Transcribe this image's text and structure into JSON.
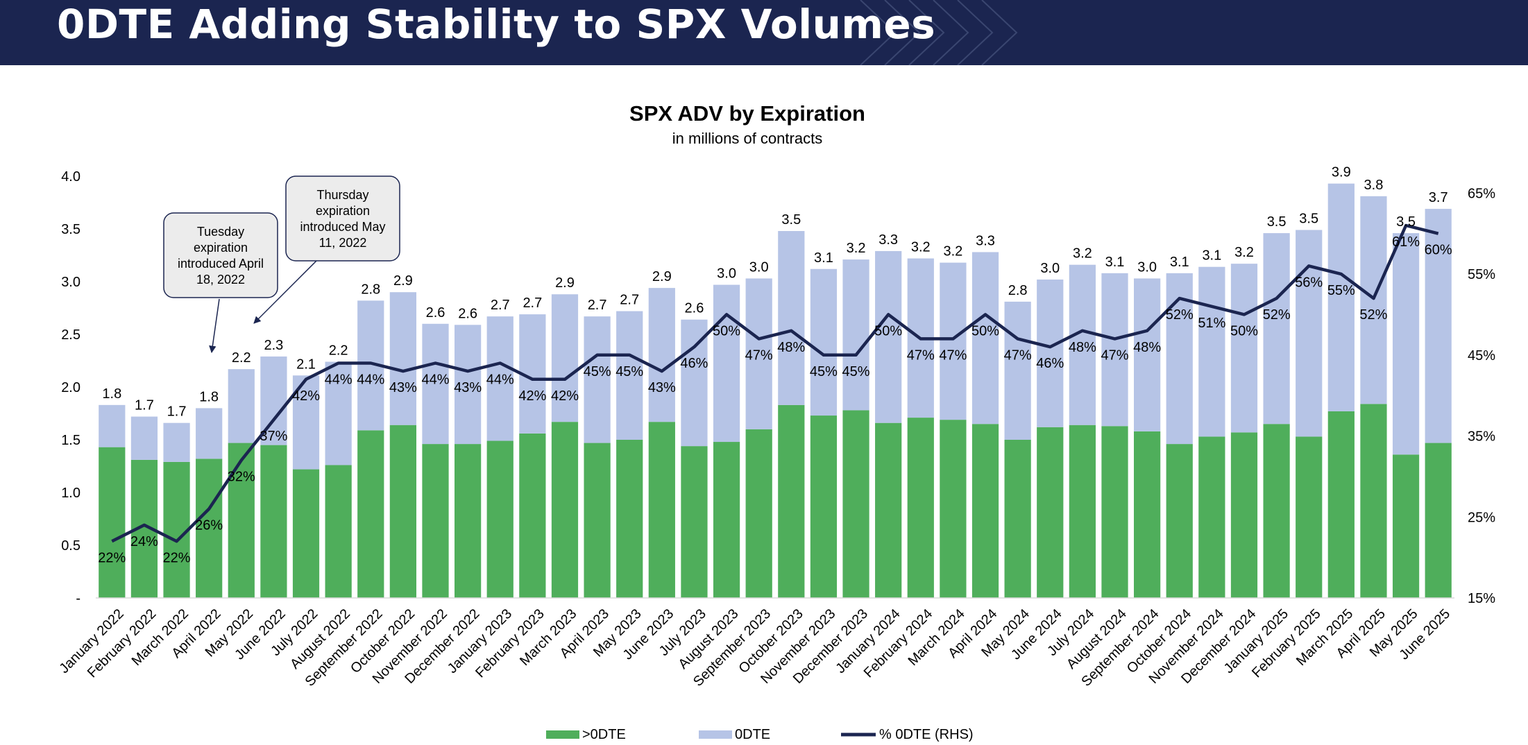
{
  "header": {
    "title": "0DTE Adding Stability to SPX Volumes"
  },
  "colors": {
    "header_bg": "#1b2550",
    "gt0dte": "#4fae5b",
    "zero_dte": "#b6c4e6",
    "line": "#1b2550"
  },
  "chart_data": {
    "type": "bar",
    "stacked": true,
    "title": "SPX ADV by Expiration",
    "subtitle": "in millions of contracts",
    "categories": [
      "January 2022",
      "February 2022",
      "March 2022",
      "April 2022",
      "May 2022",
      "June 2022",
      "July 2022",
      "August 2022",
      "September 2022",
      "October 2022",
      "November 2022",
      "December 2022",
      "January 2023",
      "February 2023",
      "March 2023",
      "April 2023",
      "May 2023",
      "June 2023",
      "July 2023",
      "August 2023",
      "September 2023",
      "October 2023",
      "November 2023",
      "December 2023",
      "January 2024",
      "February 2024",
      "March 2024",
      "April 2024",
      "May 2024",
      "June 2024",
      "July 2024",
      "August 2024",
      "September 2024",
      "October 2024",
      "November 2024",
      "December 2024",
      "January 2025",
      "February 2025",
      "March 2025",
      "April 2025",
      "May 2025",
      "June 2025"
    ],
    "series": [
      {
        "name": ">0DTE",
        "kind": "bar",
        "values": [
          1.43,
          1.31,
          1.29,
          1.32,
          1.47,
          1.45,
          1.22,
          1.26,
          1.59,
          1.64,
          1.46,
          1.46,
          1.49,
          1.56,
          1.67,
          1.47,
          1.5,
          1.67,
          1.44,
          1.48,
          1.6,
          1.83,
          1.73,
          1.78,
          1.66,
          1.71,
          1.69,
          1.65,
          1.5,
          1.62,
          1.64,
          1.63,
          1.58,
          1.46,
          1.53,
          1.57,
          1.65,
          1.53,
          1.77,
          1.84,
          1.36,
          1.47
        ]
      },
      {
        "name": "0DTE",
        "kind": "bar",
        "values": [
          0.4,
          0.41,
          0.37,
          0.48,
          0.7,
          0.84,
          0.89,
          0.98,
          1.23,
          1.26,
          1.14,
          1.13,
          1.18,
          1.13,
          1.21,
          1.2,
          1.22,
          1.27,
          1.2,
          1.49,
          1.43,
          1.65,
          1.39,
          1.43,
          1.63,
          1.51,
          1.49,
          1.63,
          1.31,
          1.4,
          1.52,
          1.45,
          1.45,
          1.62,
          1.61,
          1.6,
          1.81,
          1.96,
          2.16,
          1.97,
          2.1,
          2.22
        ]
      },
      {
        "name": "% 0DTE (RHS)",
        "kind": "line",
        "axis": "right",
        "values": [
          22,
          24,
          22,
          26,
          32,
          37,
          42,
          44,
          44,
          43,
          44,
          43,
          44,
          42,
          42,
          45,
          45,
          43,
          46,
          50,
          47,
          48,
          45,
          45,
          50,
          47,
          47,
          50,
          47,
          46,
          48,
          47,
          48,
          52,
          51,
          50,
          52,
          56,
          55,
          52,
          61,
          60
        ]
      }
    ],
    "total_labels": [
      "1.8",
      "1.7",
      "1.7",
      "1.8",
      "2.2",
      "2.3",
      "2.1",
      "2.2",
      "2.8",
      "2.9",
      "2.6",
      "2.6",
      "2.7",
      "2.7",
      "2.9",
      "2.7",
      "2.7",
      "2.9",
      "2.6",
      "3.0",
      "3.0",
      "3.5",
      "3.1",
      "3.2",
      "3.3",
      "3.2",
      "3.2",
      "3.3",
      "2.8",
      "3.0",
      "3.2",
      "3.1",
      "3.0",
      "3.1",
      "3.1",
      "3.2",
      "3.5",
      "3.5",
      "3.9",
      "3.8",
      "3.5",
      "3.7"
    ],
    "pct_labels": [
      "22%",
      "24%",
      "22%",
      "26%",
      "32%",
      "37%",
      "42%",
      "44%",
      "44%",
      "43%",
      "44%",
      "43%",
      "44%",
      "42%",
      "42%",
      "45%",
      "45%",
      "43%",
      "46%",
      "50%",
      "47%",
      "48%",
      "45%",
      "45%",
      "50%",
      "47%",
      "47%",
      "50%",
      "47%",
      "46%",
      "48%",
      "47%",
      "48%",
      "52%",
      "51%",
      "50%",
      "52%",
      "56%",
      "55%",
      "52%",
      "61%",
      "60%"
    ],
    "y_left": {
      "ylim": [
        0,
        4.0
      ],
      "ticks": [
        0,
        0.5,
        1.0,
        1.5,
        2.0,
        2.5,
        3.0,
        3.5,
        4.0
      ],
      "tick_labels": [
        "-",
        "0.5",
        "1.0",
        "1.5",
        "2.0",
        "2.5",
        "3.0",
        "3.5",
        "4.0"
      ]
    },
    "y_right": {
      "ylim": [
        15,
        70
      ],
      "ticks": [
        15,
        25,
        35,
        45,
        55,
        65
      ],
      "tick_labels": [
        "15%",
        "25%",
        "35%",
        "45%",
        "55%",
        "65%"
      ]
    },
    "legend": {
      "placement": "bottom",
      "entries": [
        ">0DTE",
        "0DTE",
        "% 0DTE (RHS)"
      ]
    },
    "annotations": [
      {
        "lines": [
          "Tuesday",
          "expiration",
          "introduced April",
          "18, 2022"
        ],
        "points_to": "April 2022"
      },
      {
        "lines": [
          "Thursday",
          "expiration",
          "introduced May",
          "11, 2022"
        ],
        "points_to": "May 2022"
      }
    ]
  }
}
